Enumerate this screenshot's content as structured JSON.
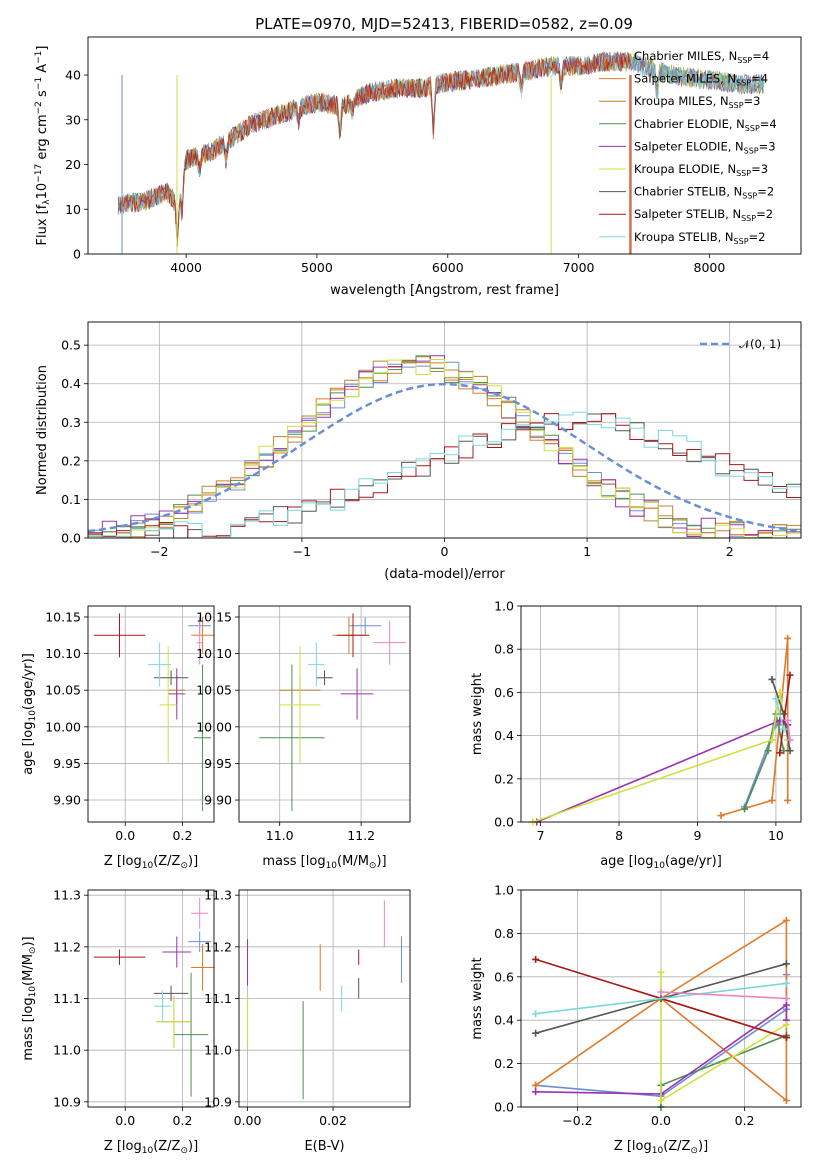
{
  "figure_title": "PLATE=0970, MJD=52413, FIBERID=0582, z=0.09",
  "models": [
    {
      "name": "Chabrier MILES, N",
      "nssp": "=4",
      "color": "#6b8fd6"
    },
    {
      "name": "Salpeter MILES, N",
      "nssp": "=4",
      "color": "#e07a2a"
    },
    {
      "name": "Kroupa MILES, N",
      "nssp": "=3",
      "color": "#b8862e"
    },
    {
      "name": "Chabrier ELODIE, N",
      "nssp": "=4",
      "color": "#4f8f50"
    },
    {
      "name": "Salpeter ELODIE, N",
      "nssp": "=3",
      "color": "#9a32b0"
    },
    {
      "name": "Kroupa ELODIE, N",
      "nssp": "=3",
      "color": "#d0e040"
    },
    {
      "name": "Chabrier STELIB, N",
      "nssp": "=2",
      "color": "#555555"
    },
    {
      "name": "Salpeter STELIB, N",
      "nssp": "=2",
      "color": "#a81818"
    },
    {
      "name": "Kroupa STELIB, N",
      "nssp": "=2",
      "color": "#7ad8dc"
    }
  ],
  "ssp_subscript": "SSP",
  "chart_data": [
    {
      "id": "spectrum",
      "type": "line",
      "xlabel": "wavelength [Angstrom, rest frame]",
      "ylabel_main": "Flux [f",
      "ylabel_sub": "λ",
      "ylabel_mid": "10",
      "ylabel_exp1": "−17",
      "ylabel_rest": " erg cm",
      "ylabel_exp2": "−2",
      "ylabel_s": " s",
      "ylabel_exp3": "−1",
      "ylabel_A": " A",
      "ylabel_exp4": "−1",
      "ylabel_end": "]",
      "xlim": [
        3250,
        8700
      ],
      "ylim": [
        0,
        48.5
      ],
      "xticks": [
        4000,
        5000,
        6000,
        7000,
        8000
      ],
      "yticks": [
        0,
        10,
        20,
        30,
        40
      ],
      "continuum": [
        [
          3500,
          11
        ],
        [
          3700,
          12
        ],
        [
          3850,
          14
        ],
        [
          3930,
          11
        ],
        [
          4000,
          21
        ],
        [
          4200,
          23
        ],
        [
          4500,
          29
        ],
        [
          4800,
          32
        ],
        [
          5000,
          34
        ],
        [
          5200,
          33
        ],
        [
          5400,
          36
        ],
        [
          5600,
          37
        ],
        [
          5800,
          37
        ],
        [
          6000,
          38.5
        ],
        [
          6200,
          39
        ],
        [
          6400,
          40
        ],
        [
          6600,
          41
        ],
        [
          6800,
          42
        ],
        [
          7000,
          42
        ],
        [
          7200,
          43
        ],
        [
          7400,
          43
        ],
        [
          7600,
          41
        ],
        [
          7800,
          39.5
        ],
        [
          8000,
          39
        ],
        [
          8200,
          38
        ],
        [
          8400,
          38
        ]
      ],
      "absorption": [
        [
          3934,
          8
        ],
        [
          3969,
          7
        ],
        [
          4102,
          3
        ],
        [
          4305,
          4
        ],
        [
          4861,
          3
        ],
        [
          5175,
          6
        ],
        [
          5270,
          2
        ],
        [
          5890,
          10
        ],
        [
          6563,
          4
        ],
        [
          6867,
          4
        ],
        [
          7600,
          5
        ]
      ]
    },
    {
      "id": "residuals",
      "type": "histogram",
      "xlabel": "(data-model)/error",
      "ylabel": "Normed distribution",
      "xlim": [
        -2.5,
        2.5
      ],
      "ylim": [
        0,
        0.56
      ],
      "xticks": [
        -2,
        -1,
        0,
        1,
        2
      ],
      "yticks": [
        0.0,
        0.1,
        0.2,
        0.3,
        0.4,
        0.5
      ],
      "legend": "𝒩(0, 1)",
      "groups": {
        "centered": [
          0,
          1,
          2,
          3,
          4,
          5
        ],
        "shifted": [
          6,
          7,
          8
        ]
      }
    },
    {
      "id": "age_vs_Z",
      "type": "scatter_errorbar",
      "xlabel": "Z [log",
      "xlabel_sub": "10",
      "xlabel_end": "(Z/Z",
      "xlabel_sun": "⊙",
      "xlabel_close": ")]",
      "ylabel": "age  [log",
      "ylabel_sub": "10",
      "ylabel_end": "(age/yr)]",
      "xlim": [
        -0.13,
        0.31
      ],
      "ylim": [
        9.87,
        10.165
      ],
      "xticks": [
        0.0,
        0.2
      ],
      "yticks": [
        9.9,
        9.95,
        10.0,
        10.05,
        10.1,
        10.15
      ],
      "points": [
        {
          "m": 0,
          "x": 0.26,
          "xe": 0.04,
          "y": 10.138,
          "ye": 0.012
        },
        {
          "m": 1,
          "x": 0.27,
          "xe": 0.04,
          "y": 10.125,
          "ye": 0.025
        },
        {
          "m": 2,
          "x": 0.18,
          "xe": 0.03,
          "y": 10.05,
          "ye": 0.02
        },
        {
          "m": 3,
          "x": 0.27,
          "xe": 0.03,
          "y": 9.985,
          "ye": 0.1
        },
        {
          "m": 4,
          "x": 0.18,
          "xe": 0.03,
          "y": 10.045,
          "ye": 0.035
        },
        {
          "m": 5,
          "x": 0.15,
          "xe": 0.03,
          "y": 10.03,
          "ye": 0.08
        },
        {
          "m": 6,
          "x": 0.16,
          "xe": 0.06,
          "y": 10.067,
          "ye": 0.01
        },
        {
          "m": 7,
          "x": -0.02,
          "xe": 0.09,
          "y": 10.125,
          "ye": 0.03
        },
        {
          "m": 8,
          "x": 0.12,
          "xe": 0.04,
          "y": 10.085,
          "ye": 0.03
        },
        {
          "m": 9,
          "x": 0.26,
          "xe": 0.01,
          "y": 10.115,
          "ye": 0.03
        }
      ]
    },
    {
      "id": "age_vs_mass",
      "type": "scatter_errorbar",
      "xlabel": "mass [log",
      "xlabel_sub": "10",
      "xlabel_end": "(M/M",
      "xlabel_sun": "⊙",
      "xlabel_close": ")]",
      "xlim": [
        10.9,
        11.32
      ],
      "ylim": [
        9.87,
        10.165
      ],
      "xticks": [
        11.0,
        11.2
      ],
      "yticks": [
        9.9,
        9.95,
        10.0,
        10.05,
        10.1,
        10.15
      ],
      "points": [
        {
          "m": 0,
          "x": 11.21,
          "xe": 0.04,
          "y": 10.138,
          "ye": 0.012
        },
        {
          "m": 1,
          "x": 11.17,
          "xe": 0.04,
          "y": 10.125,
          "ye": 0.025
        },
        {
          "m": 2,
          "x": 11.05,
          "xe": 0.05,
          "y": 10.05,
          "ye": 0.02
        },
        {
          "m": 3,
          "x": 11.03,
          "xe": 0.08,
          "y": 9.985,
          "ye": 0.1
        },
        {
          "m": 4,
          "x": 11.19,
          "xe": 0.04,
          "y": 10.045,
          "ye": 0.035
        },
        {
          "m": 5,
          "x": 11.05,
          "xe": 0.05,
          "y": 10.03,
          "ye": 0.08
        },
        {
          "m": 6,
          "x": 11.11,
          "xe": 0.02,
          "y": 10.067,
          "ye": 0.01
        },
        {
          "m": 7,
          "x": 11.18,
          "xe": 0.04,
          "y": 10.125,
          "ye": 0.03
        },
        {
          "m": 8,
          "x": 11.09,
          "xe": 0.02,
          "y": 10.085,
          "ye": 0.03
        },
        {
          "m": 9,
          "x": 11.27,
          "xe": 0.04,
          "y": 10.115,
          "ye": 0.03
        }
      ]
    },
    {
      "id": "weight_vs_age",
      "type": "line",
      "xlabel": "age  [log",
      "xlabel_sub": "10",
      "xlabel_end": "(age/yr)]",
      "ylabel": "mass weight",
      "xlim": [
        6.75,
        10.32
      ],
      "ylim": [
        0,
        1.0
      ],
      "xticks": [
        7,
        8,
        9,
        10
      ],
      "yticks": [
        0.0,
        0.2,
        0.4,
        0.6,
        0.8,
        1.0
      ],
      "series": [
        {
          "m": 0,
          "x": [
            9.6,
            10.0,
            10.15
          ],
          "y": [
            0.07,
            0.45,
            0.45
          ]
        },
        {
          "m": 1,
          "x": [
            9.3,
            9.95,
            10.15,
            10.15
          ],
          "y": [
            0.03,
            0.1,
            0.85,
            0.1
          ]
        },
        {
          "m": 3,
          "x": [
            9.6,
            9.9,
            10.0,
            10.1
          ],
          "y": [
            0.06,
            0.33,
            0.5,
            0.33
          ]
        },
        {
          "m": 4,
          "x": [
            6.95,
            10.05,
            10.15
          ],
          "y": [
            0.0,
            0.47,
            0.45
          ]
        },
        {
          "m": 5,
          "x": [
            6.9,
            9.95,
            10.05,
            10.15
          ],
          "y": [
            0.0,
            0.38,
            0.6,
            0.38
          ]
        },
        {
          "m": 6,
          "x": [
            9.95,
            10.1,
            10.18
          ],
          "y": [
            0.66,
            0.5,
            0.33
          ]
        },
        {
          "m": 7,
          "x": [
            10.05,
            10.18
          ],
          "y": [
            0.32,
            0.68
          ]
        },
        {
          "m": 8,
          "x": [
            10.0,
            10.1
          ],
          "y": [
            0.57,
            0.43
          ]
        },
        {
          "m": 9,
          "x": [
            10.15,
            10.18
          ],
          "y": [
            0.47,
            0.38
          ]
        }
      ]
    },
    {
      "id": "mass_vs_Z",
      "type": "scatter_errorbar",
      "xlabel": "Z [log",
      "xlabel_sub": "10",
      "xlabel_end": "(Z/Z",
      "xlabel_sun": "⊙",
      "xlabel_close": ")]",
      "ylabel": "mass [log",
      "ylabel_sub": "10",
      "ylabel_end": "(M/M",
      "ylabel_sun": "⊙",
      "ylabel_close": ")]",
      "xlim": [
        -0.13,
        0.31
      ],
      "ylim": [
        10.89,
        11.31
      ],
      "xticks": [
        0.0,
        0.2
      ],
      "yticks": [
        10.9,
        11.0,
        11.1,
        11.2,
        11.3
      ],
      "points": [
        {
          "m": 0,
          "x": 0.26,
          "xe": 0.04,
          "y": 11.21,
          "ye": 0.02
        },
        {
          "m": 1,
          "x": 0.27,
          "xe": 0.04,
          "y": 11.16,
          "ye": 0.045
        },
        {
          "m": 2,
          "x": 0.17,
          "xe": 0.06,
          "y": 11.055,
          "ye": 0.05
        },
        {
          "m": 3,
          "x": 0.23,
          "xe": 0.06,
          "y": 11.03,
          "ye": 0.12
        },
        {
          "m": 4,
          "x": 0.18,
          "xe": 0.05,
          "y": 11.19,
          "ye": 0.03
        },
        {
          "m": 5,
          "x": 0.17,
          "xe": 0.06,
          "y": 11.055,
          "ye": 0.05
        },
        {
          "m": 6,
          "x": 0.16,
          "xe": 0.06,
          "y": 11.11,
          "ye": 0.015
        },
        {
          "m": 7,
          "x": -0.02,
          "xe": 0.09,
          "y": 11.18,
          "ye": 0.015
        },
        {
          "m": 8,
          "x": 0.13,
          "xe": 0.03,
          "y": 11.085,
          "ye": 0.03
        },
        {
          "m": 9,
          "x": 0.26,
          "xe": 0.03,
          "y": 11.265,
          "ye": 0.03
        }
      ]
    },
    {
      "id": "mass_vs_EBV",
      "type": "scatter_errorbar",
      "xlabel": "E(B-V)",
      "xlim": [
        -0.002,
        0.038
      ],
      "ylim": [
        10.89,
        11.31
      ],
      "xticks": [
        0.0,
        0.02
      ],
      "yticks": [
        10.9,
        11.0,
        11.1,
        11.2,
        11.3
      ],
      "points": [
        {
          "m": 0,
          "x": 0.036,
          "xe": 0,
          "y": 11.175,
          "ye": 0.045
        },
        {
          "m": 1,
          "x": 0.017,
          "xe": 0,
          "y": 11.16,
          "ye": 0.045
        },
        {
          "m": 2,
          "x": 0.0,
          "xe": 0,
          "y": 11.055,
          "ye": 0.05
        },
        {
          "m": 3,
          "x": 0.013,
          "xe": 0,
          "y": 11.0,
          "ye": 0.095
        },
        {
          "m": 4,
          "x": 0.0,
          "xe": 0,
          "y": 11.17,
          "ye": 0.045
        },
        {
          "m": 5,
          "x": 0.0,
          "xe": 0,
          "y": 11.055,
          "ye": 0.05
        },
        {
          "m": 6,
          "x": 0.026,
          "xe": 0,
          "y": 11.12,
          "ye": 0.02
        },
        {
          "m": 7,
          "x": 0.026,
          "xe": 0,
          "y": 11.18,
          "ye": 0.015
        },
        {
          "m": 8,
          "x": 0.022,
          "xe": 0,
          "y": 11.1,
          "ye": 0.025
        },
        {
          "m": 9,
          "x": 0.032,
          "xe": 0,
          "y": 11.245,
          "ye": 0.045
        }
      ]
    },
    {
      "id": "weight_vs_Z",
      "type": "line",
      "xlabel": "Z [log",
      "xlabel_sub": "10",
      "xlabel_end": "(Z/Z",
      "xlabel_sun": "⊙",
      "xlabel_close": ")]",
      "ylabel": "mass weight",
      "xlim": [
        -0.335,
        0.335
      ],
      "ylim": [
        0,
        1.0
      ],
      "xticks": [
        -0.2,
        0.0,
        0.2
      ],
      "yticks": [
        0.0,
        0.2,
        0.4,
        0.6,
        0.8,
        1.0
      ],
      "series": [
        {
          "m": 0,
          "x": [
            -0.3,
            0.0,
            0.3,
            0.3
          ],
          "y": [
            0.1,
            0.05,
            0.45,
            0.61
          ]
        },
        {
          "m": 1,
          "x": [
            -0.3,
            0.0,
            0.3,
            0.3,
            0.0,
            0.3
          ],
          "y": [
            0.1,
            0.5,
            0.86,
            0.03,
            0.5,
            0.32
          ]
        },
        {
          "m": 3,
          "x": [
            0.0,
            0.0,
            0.3
          ],
          "y": [
            0.0,
            0.1,
            0.33
          ]
        },
        {
          "m": 4,
          "x": [
            -0.3,
            0.0,
            0.3,
            0.3
          ],
          "y": [
            0.07,
            0.06,
            0.47,
            0.4
          ]
        },
        {
          "m": 5,
          "x": [
            0.0,
            0.0,
            0.3
          ],
          "y": [
            0.62,
            0.03,
            0.38
          ]
        },
        {
          "m": 6,
          "x": [
            -0.3,
            0.0,
            0.3
          ],
          "y": [
            0.34,
            0.5,
            0.66
          ]
        },
        {
          "m": 7,
          "x": [
            -0.3,
            0.3
          ],
          "y": [
            0.68,
            0.32
          ]
        },
        {
          "m": 8,
          "x": [
            -0.3,
            0.3
          ],
          "y": [
            0.43,
            0.57
          ]
        },
        {
          "m": 9,
          "x": [
            0.0,
            0.3
          ],
          "y": [
            0.53,
            0.5
          ]
        }
      ]
    }
  ],
  "extra_colors": [
    "#e986c0"
  ]
}
